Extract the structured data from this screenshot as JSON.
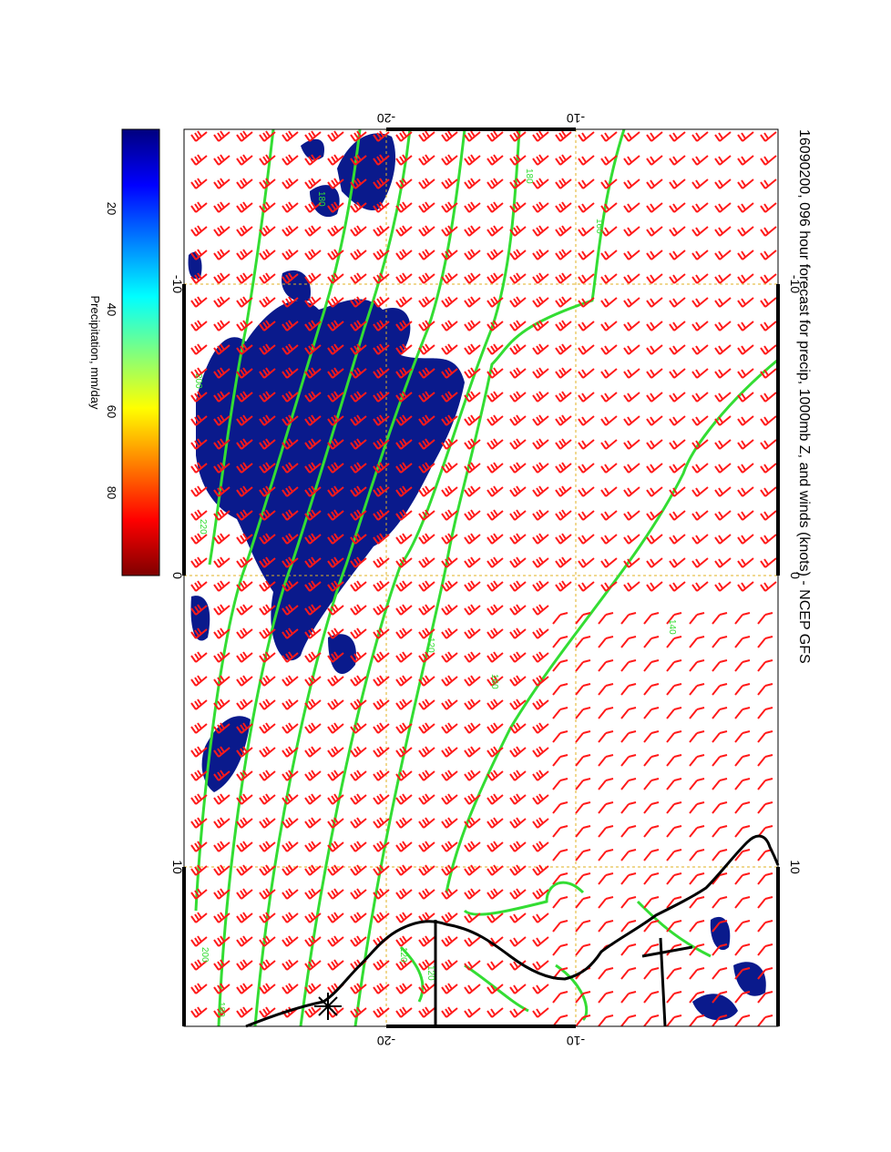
{
  "title": "16090200, 096 hour forecast for precip, 1000mb Z, and winds (knots) - NCEP GFS",
  "top_axis": {
    "ticks": [
      "-20",
      "-10"
    ]
  },
  "bottom_axis": {
    "ticks": [
      "-20",
      "-10"
    ]
  },
  "left_axis": {
    "ticks": [
      "-10",
      "0",
      "10"
    ]
  },
  "right_axis": {
    "ticks": [
      "-10",
      "0",
      "10"
    ]
  },
  "colorbar": {
    "label": "Precipitation, mm/day",
    "ticks": [
      "20",
      "40",
      "60",
      "80"
    ],
    "colors": [
      "#00007f",
      "#0000ff",
      "#007fff",
      "#00ffff",
      "#7fff7f",
      "#ffff00",
      "#ff7f00",
      "#ff0000",
      "#7f0000"
    ]
  },
  "contour_labels": [
    "180",
    "160",
    "140",
    "120",
    "180",
    "200",
    "220",
    "200",
    "180",
    "160",
    "120",
    "120"
  ],
  "colors": {
    "precip": "#0a1a8c",
    "contour": "#33dd33",
    "barb": "#ff1a1a",
    "coast": "#000000",
    "grid": "#e0b020"
  }
}
